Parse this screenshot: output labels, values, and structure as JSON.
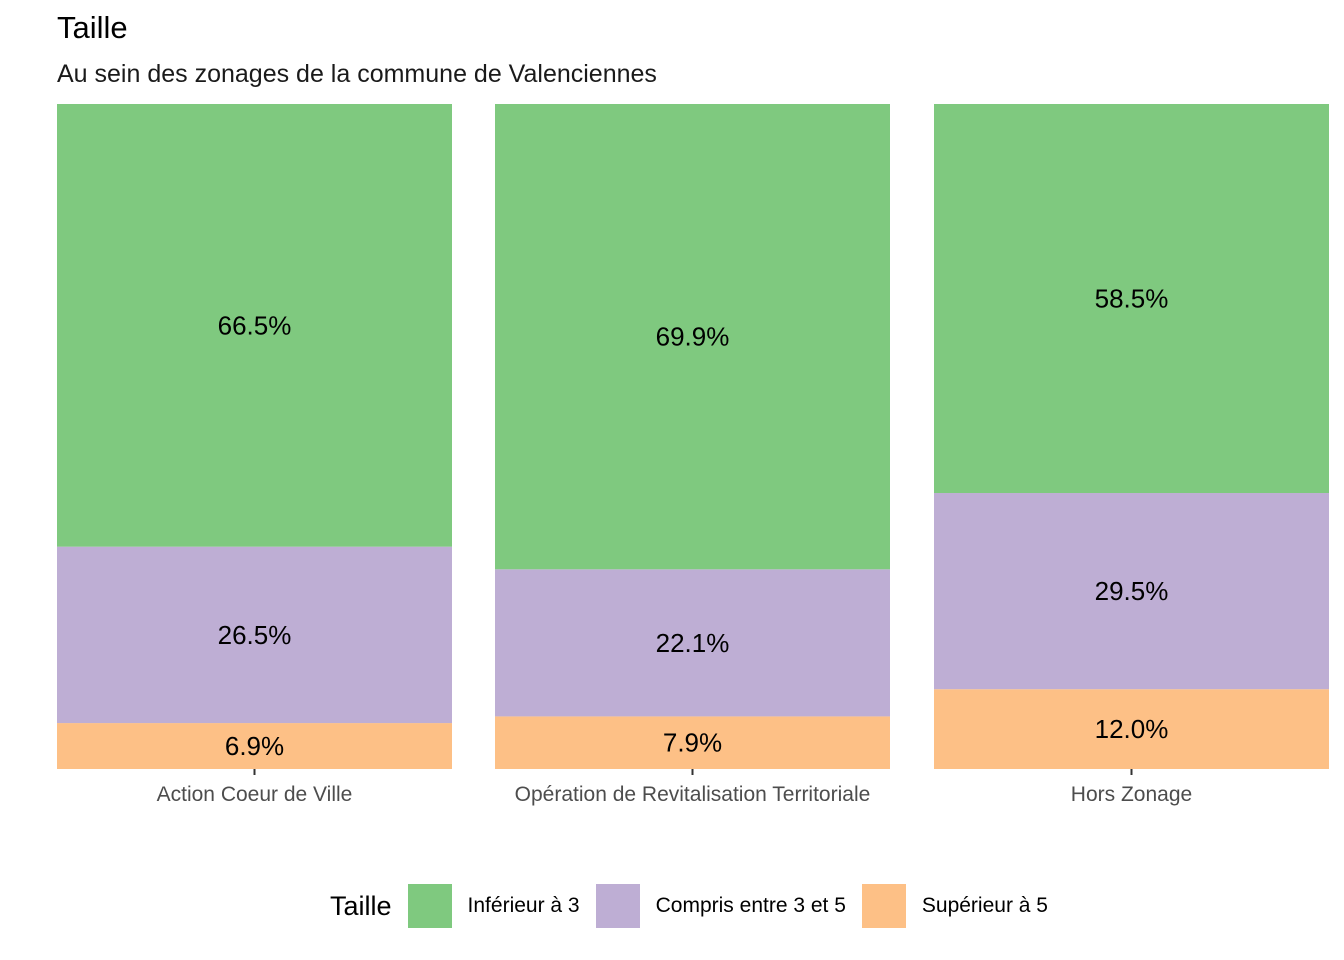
{
  "chart_data": {
    "type": "bar",
    "stacked": true,
    "normalized": true,
    "title": "Taille",
    "subtitle": "Au sein des zonages de la commune de Valenciennes",
    "categories": [
      "Action Coeur de Ville",
      "Opération de Revitalisation Territoriale",
      "Hors Zonage"
    ],
    "series": [
      {
        "name": "Supérieur à 5",
        "color": "#FDC086",
        "values": [
          6.9,
          7.9,
          12.0
        ],
        "labels": [
          "6.9%",
          "7.9%",
          "12.0%"
        ]
      },
      {
        "name": "Compris entre 3 et 5",
        "color": "#BEAED4",
        "values": [
          26.5,
          22.1,
          29.5
        ],
        "labels": [
          "26.5%",
          "22.1%",
          "29.5%"
        ]
      },
      {
        "name": "Inférieur à 3",
        "color": "#7FC97F",
        "values": [
          66.5,
          69.9,
          58.5
        ],
        "labels": [
          "66.5%",
          "69.9%",
          "58.5%"
        ]
      }
    ],
    "ylim": [
      0,
      100
    ],
    "y_axis_shown": false,
    "grid": false,
    "legend": {
      "title": "Taille",
      "placement": "bottom",
      "entries": [
        "Inférieur à 3",
        "Compris entre 3 et 5",
        "Supérieur à 5"
      ]
    }
  }
}
